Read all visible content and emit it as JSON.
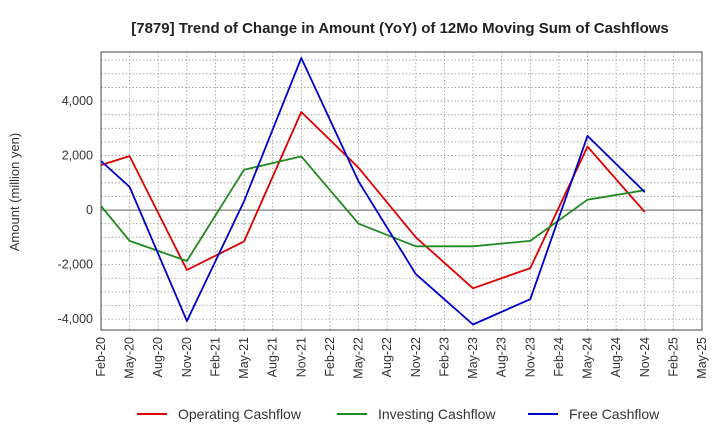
{
  "chart_data": {
    "type": "line",
    "title": "[7879]  Trend of Change in Amount (YoY) of 12Mo Moving Sum of Cashflows",
    "xlabel": "",
    "ylabel": "Amount (million yen)",
    "ylim": [
      -4400,
      5800
    ],
    "yticks": [
      -4000,
      -2000,
      0,
      2000,
      4000
    ],
    "ytick_labels": [
      "-4,000",
      "-2,000",
      "0",
      "2,000",
      "4,000"
    ],
    "categories": [
      "Feb-20",
      "May-20",
      "Aug-20",
      "Nov-20",
      "Feb-21",
      "May-21",
      "Aug-21",
      "Nov-21",
      "Feb-22",
      "May-22",
      "Aug-22",
      "Nov-22",
      "Feb-23",
      "May-23",
      "Aug-23",
      "Nov-23",
      "Feb-24",
      "May-24",
      "Aug-24",
      "Nov-24",
      "Feb-25",
      "May-25"
    ],
    "grid": true,
    "legend_position": "bottom",
    "series": [
      {
        "name": "Operating Cashflow",
        "color": "#dd0000",
        "values": [
          1650,
          1980,
          null,
          -2200,
          null,
          -1150,
          null,
          3600,
          null,
          1550,
          null,
          -1000,
          null,
          -2870,
          null,
          -2130,
          null,
          2330,
          null,
          -70,
          null,
          null
        ]
      },
      {
        "name": "Investing Cashflow",
        "color": "#228822",
        "values": [
          150,
          -1130,
          null,
          -1870,
          null,
          1480,
          null,
          1970,
          null,
          -500,
          null,
          -1330,
          null,
          -1330,
          null,
          -1130,
          null,
          380,
          null,
          730,
          null,
          null
        ]
      },
      {
        "name": "Free Cashflow",
        "color": "#0000cc",
        "values": [
          1800,
          850,
          null,
          -4070,
          null,
          330,
          null,
          5580,
          null,
          1050,
          null,
          -2350,
          null,
          -4200,
          null,
          -3270,
          null,
          2720,
          null,
          660,
          null,
          null
        ]
      }
    ]
  }
}
